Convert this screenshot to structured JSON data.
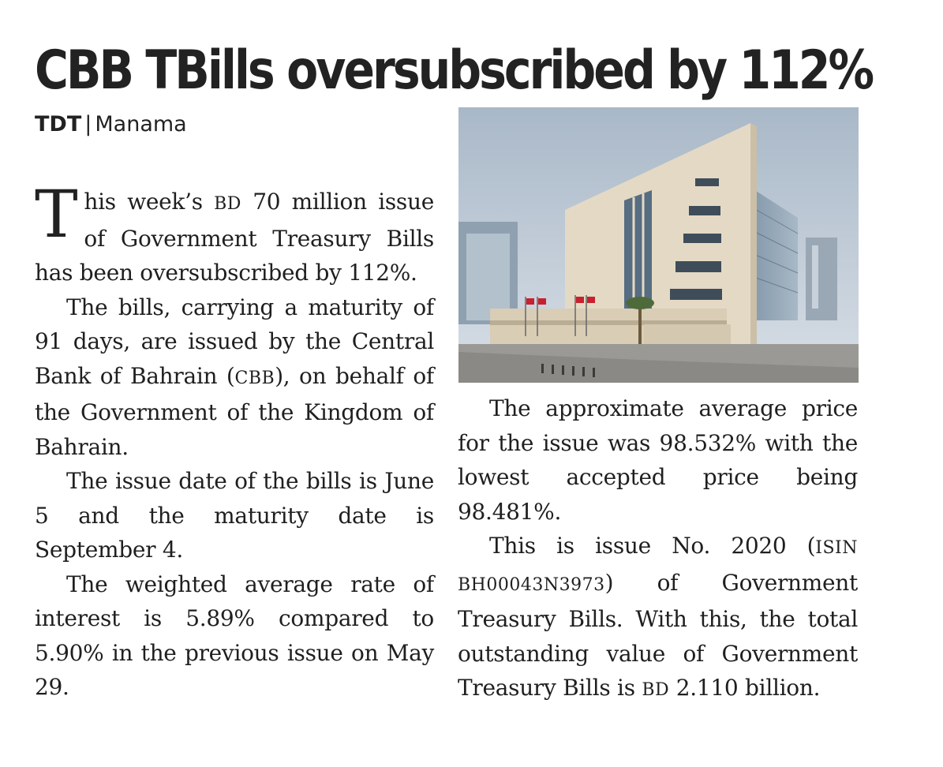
{
  "headline": "CBB TBills oversubscribed by 112%",
  "byline": {
    "agency": "TDT",
    "separator": "|",
    "location": "Manama"
  },
  "body": {
    "p1": {
      "dropcap": "T",
      "t1": "his week’s ",
      "bd": "BD",
      "t2": " 70 million is­sue of Government Treas­ury Bills has been oversub­scribed by 112%."
    },
    "p2": {
      "t1": "The bills, carrying a maturi­ty of 91 days, are issued by the Central Bank of Bahrain (",
      "cbb": "CBB",
      "t2": "), on behalf of the Government of the Kingdom of Bahrain."
    },
    "p3": "The issue date of the bills is June 5 and the maturity date is September 4.",
    "p4": "The weighted average rate of interest is 5.89% compared to 5.90% in the previous issue on May 29.",
    "p5": "The approximate average price for the issue was 98.532% with the lowest accepted price being 98.481%.",
    "p6": {
      "t1": "This is issue No. 2020 (",
      "isin": "ISIN BH00043N3973",
      "t2": ") of Govern­ment Treasury Bills. With this, the total outstanding value of Government Treasury Bills is ",
      "bd": "BD",
      "t3": " 2.110 billion."
    }
  },
  "photo": {
    "icon": "building-photo-icon",
    "colors": {
      "sky": "#b9c6d3",
      "facade": "#e6dcc8",
      "glass": "#5d7488",
      "road": "#8e8e8c",
      "flag": "#c8202e"
    }
  }
}
